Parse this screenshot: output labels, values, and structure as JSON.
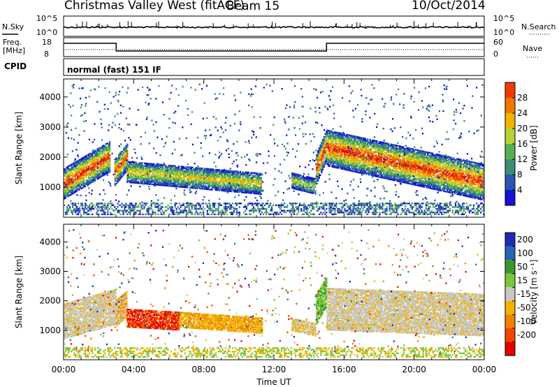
{
  "header": {
    "title": "Christmas Valley West (fitACF)",
    "beam": "Beam 15",
    "date": "10/Oct/2014"
  },
  "strip_labels": {
    "nsky": "N.Sky",
    "nsearch": "N.Search",
    "freq_line1": "Freq.",
    "freq_line2": "[MHz]",
    "nave": "Nave",
    "cpid": "CPID",
    "cpid_value": "normal (fast) 151 IF"
  },
  "colors": {
    "power_scale": [
      "#1414d2",
      "#2a55b4",
      "#3c8c78",
      "#58b04c",
      "#b4d232",
      "#f0b400",
      "#f07800",
      "#f03c00",
      "#e60000"
    ],
    "velocity_scale": [
      "#1e2ab4",
      "#2864b4",
      "#3c9628",
      "#78c83c",
      "#c8c8c0",
      "#f0b400",
      "#f08200",
      "#f04600",
      "#e60000"
    ]
  },
  "chart_data": [
    {
      "type": "line",
      "name": "noise-strip",
      "y_left_ticks": [
        "10^5",
        "10^0"
      ],
      "y_right_ticks": [
        "10^5",
        "10^0"
      ],
      "x": [
        "00:00",
        "04:00",
        "08:00",
        "12:00",
        "16:00",
        "20:00",
        "00:00"
      ]
    },
    {
      "type": "line",
      "name": "freq-nave-strip",
      "y_left_ticks": [
        "18",
        "8"
      ],
      "y_right_ticks": [
        "60",
        "0"
      ],
      "series": [
        {
          "name": "Freq.",
          "x_hours": [
            0,
            3,
            3,
            15,
            15,
            24
          ],
          "values": [
            16,
            16,
            10.5,
            10.5,
            16,
            16
          ]
        }
      ]
    },
    {
      "type": "heatmap",
      "name": "power-panel",
      "ylabel": "Slant Range [km]",
      "y_ticks": [
        1000,
        2000,
        3000,
        4000
      ],
      "ylim": [
        0,
        4600
      ],
      "xlim_hours": [
        0,
        24
      ],
      "colorbar": {
        "label": "Power [dB]",
        "ticks": [
          "4",
          "8",
          "12",
          "16",
          "20",
          "24",
          "28"
        ]
      }
    },
    {
      "type": "heatmap",
      "name": "velocity-panel",
      "ylabel": "Slant Range [km]",
      "y_ticks": [
        1000,
        2000,
        3000,
        4000
      ],
      "ylim": [
        0,
        4600
      ],
      "xlim_hours": [
        0,
        24
      ],
      "xlabel": "Time UT",
      "x_tick_labels": [
        "00:00",
        "04:00",
        "08:00",
        "12:00",
        "16:00",
        "20:00",
        "00:00"
      ],
      "colorbar": {
        "label": "Velocity [m s⁻¹]",
        "ticks": [
          "200",
          "100",
          "50",
          "15",
          "-15",
          "-50",
          "-100",
          "-200"
        ]
      }
    }
  ]
}
